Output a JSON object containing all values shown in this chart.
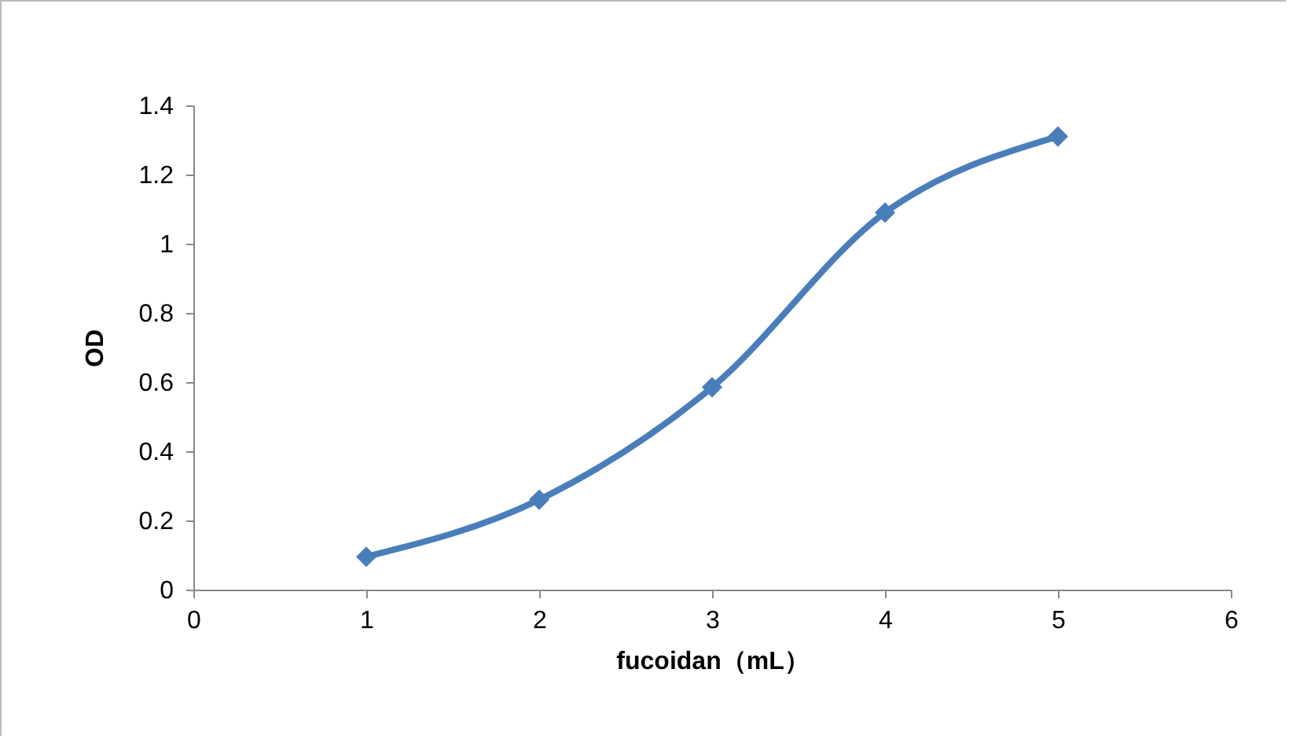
{
  "chart_data": {
    "type": "line",
    "xlabel": "fucoidan（mL）",
    "ylabel": "OD",
    "x": [
      1,
      2,
      3,
      4,
      5
    ],
    "series": [
      {
        "color": "#4a7ebb",
        "values": [
          0.095,
          0.26,
          0.585,
          1.09,
          1.31
        ]
      }
    ],
    "xlim": [
      0,
      6
    ],
    "xticks": [
      0,
      1,
      2,
      3,
      4,
      5,
      6
    ],
    "ylim": [
      0,
      1.4
    ],
    "yticks": [
      0,
      0.2,
      0.4,
      0.6,
      0.8,
      1,
      1.2,
      1.4
    ],
    "marker": "diamond",
    "line_style": "solid"
  }
}
